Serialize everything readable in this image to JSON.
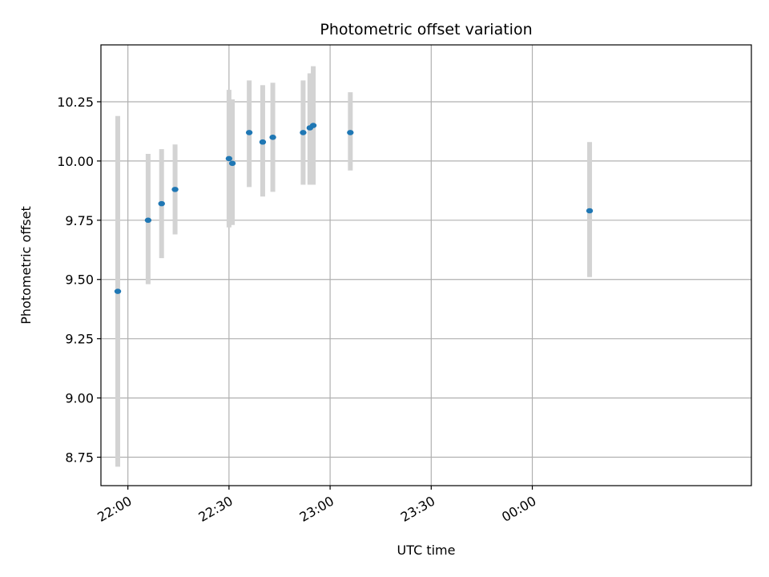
{
  "chart_data": {
    "type": "scatter",
    "title": "Photometric offset variation",
    "xlabel": "UTC time",
    "ylabel": "Photometric offset",
    "x_is_time": true,
    "xlim": [
      "21:52",
      "01:05"
    ],
    "ylim": [
      8.63,
      10.49
    ],
    "grid": true,
    "x_ticks": [
      {
        "x": "22:00",
        "label": "22:00"
      },
      {
        "x": "22:30",
        "label": "22:30"
      },
      {
        "x": "23:00",
        "label": "23:00"
      },
      {
        "x": "23:30",
        "label": "23:30"
      },
      {
        "x": "00:00",
        "label": "00:00"
      }
    ],
    "y_ticks": [
      {
        "y": 8.75,
        "label": "8.75"
      },
      {
        "y": 9.0,
        "label": "9.00"
      },
      {
        "y": 9.25,
        "label": "9.25"
      },
      {
        "y": 9.5,
        "label": "9.50"
      },
      {
        "y": 9.75,
        "label": "9.75"
      },
      {
        "y": 10.0,
        "label": "10.00"
      },
      {
        "y": 10.25,
        "label": "10.25"
      }
    ],
    "colors": {
      "point": "#1f77b4",
      "errorbar": "#d3d3d3",
      "grid": "#b0b0b0"
    },
    "points": [
      {
        "x": "21:57",
        "y": 9.45,
        "yerr_low": 8.71,
        "yerr_high": 10.19
      },
      {
        "x": "22:06",
        "y": 9.75,
        "yerr_low": 9.48,
        "yerr_high": 10.03
      },
      {
        "x": "22:10",
        "y": 9.82,
        "yerr_low": 9.59,
        "yerr_high": 10.05
      },
      {
        "x": "22:14",
        "y": 9.88,
        "yerr_low": 9.69,
        "yerr_high": 10.07
      },
      {
        "x": "22:30",
        "y": 10.01,
        "yerr_low": 9.72,
        "yerr_high": 10.3
      },
      {
        "x": "22:31",
        "y": 9.99,
        "yerr_low": 9.73,
        "yerr_high": 10.26
      },
      {
        "x": "22:36",
        "y": 10.12,
        "yerr_low": 9.89,
        "yerr_high": 10.34
      },
      {
        "x": "22:40",
        "y": 10.08,
        "yerr_low": 9.85,
        "yerr_high": 10.32
      },
      {
        "x": "22:43",
        "y": 10.1,
        "yerr_low": 9.87,
        "yerr_high": 10.33
      },
      {
        "x": "22:52",
        "y": 10.12,
        "yerr_low": 9.9,
        "yerr_high": 10.34
      },
      {
        "x": "22:54",
        "y": 10.14,
        "yerr_low": 9.9,
        "yerr_high": 10.37
      },
      {
        "x": "22:55",
        "y": 10.15,
        "yerr_low": 9.9,
        "yerr_high": 10.4
      },
      {
        "x": "23:06",
        "y": 10.12,
        "yerr_low": 9.96,
        "yerr_high": 10.29
      },
      {
        "x": "00:17",
        "y": 9.79,
        "yerr_low": 9.51,
        "yerr_high": 10.08
      }
    ]
  }
}
